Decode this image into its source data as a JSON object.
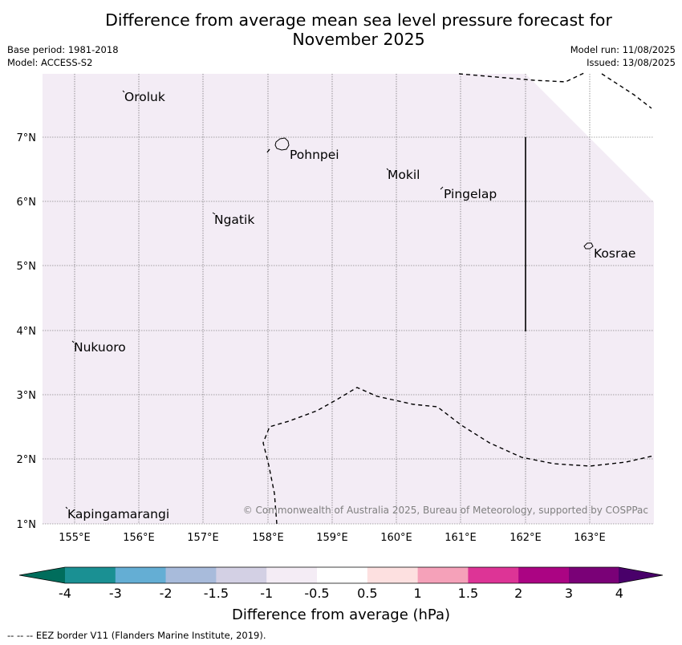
{
  "title_line1": "Difference from average mean sea level pressure forecast for",
  "title_line2": "November 2025",
  "base_period": "Base period: 1981-2018",
  "model": "Model: ACCESS-S2",
  "model_run": "Model run: 11/08/2025",
  "issued": "Issued: 13/08/2025",
  "lat_ticks": [
    "7°N",
    "6°N",
    "5°N",
    "4°N",
    "3°N",
    "2°N",
    "1°N"
  ],
  "lon_ticks": [
    "155°E",
    "156°E",
    "157°E",
    "158°E",
    "159°E",
    "160°E",
    "161°E",
    "162°E",
    "163°E"
  ],
  "places": {
    "oroluk": "Oroluk",
    "pohnpei": "Pohnpei",
    "mokil": "Mokil",
    "pingelap": "Pingelap",
    "ngatik": "Ngatik",
    "kosrae": "Kosrae",
    "nukuoro": "Nukuoro",
    "kapingamarangi": "Kapingamarangi"
  },
  "copyright": "© Commonwealth of Australia 2025, Bureau of Meteorology, supported by COSPPac",
  "colorbar": {
    "title": "Difference from average (hPa)",
    "labels": [
      "-4",
      "-3",
      "-2",
      "-1.5",
      "-1",
      "-0.5",
      "0.5",
      "1",
      "1.5",
      "2",
      "3",
      "4"
    ],
    "colors": [
      "#1a9093",
      "#64aed4",
      "#a8bbdb",
      "#d3d0e4",
      "#f4ecf5",
      "#ffffff",
      "#fde0e0",
      "#f5a1b9",
      "#dd3496",
      "#ab0483",
      "#7a0177"
    ],
    "low_color": "#006d5c",
    "high_color": "#49006a"
  },
  "map_fill_color": "#f3ecf5",
  "footer": "--  --  -- EEZ border V11 (Flanders Marine Institute, 2019)."
}
